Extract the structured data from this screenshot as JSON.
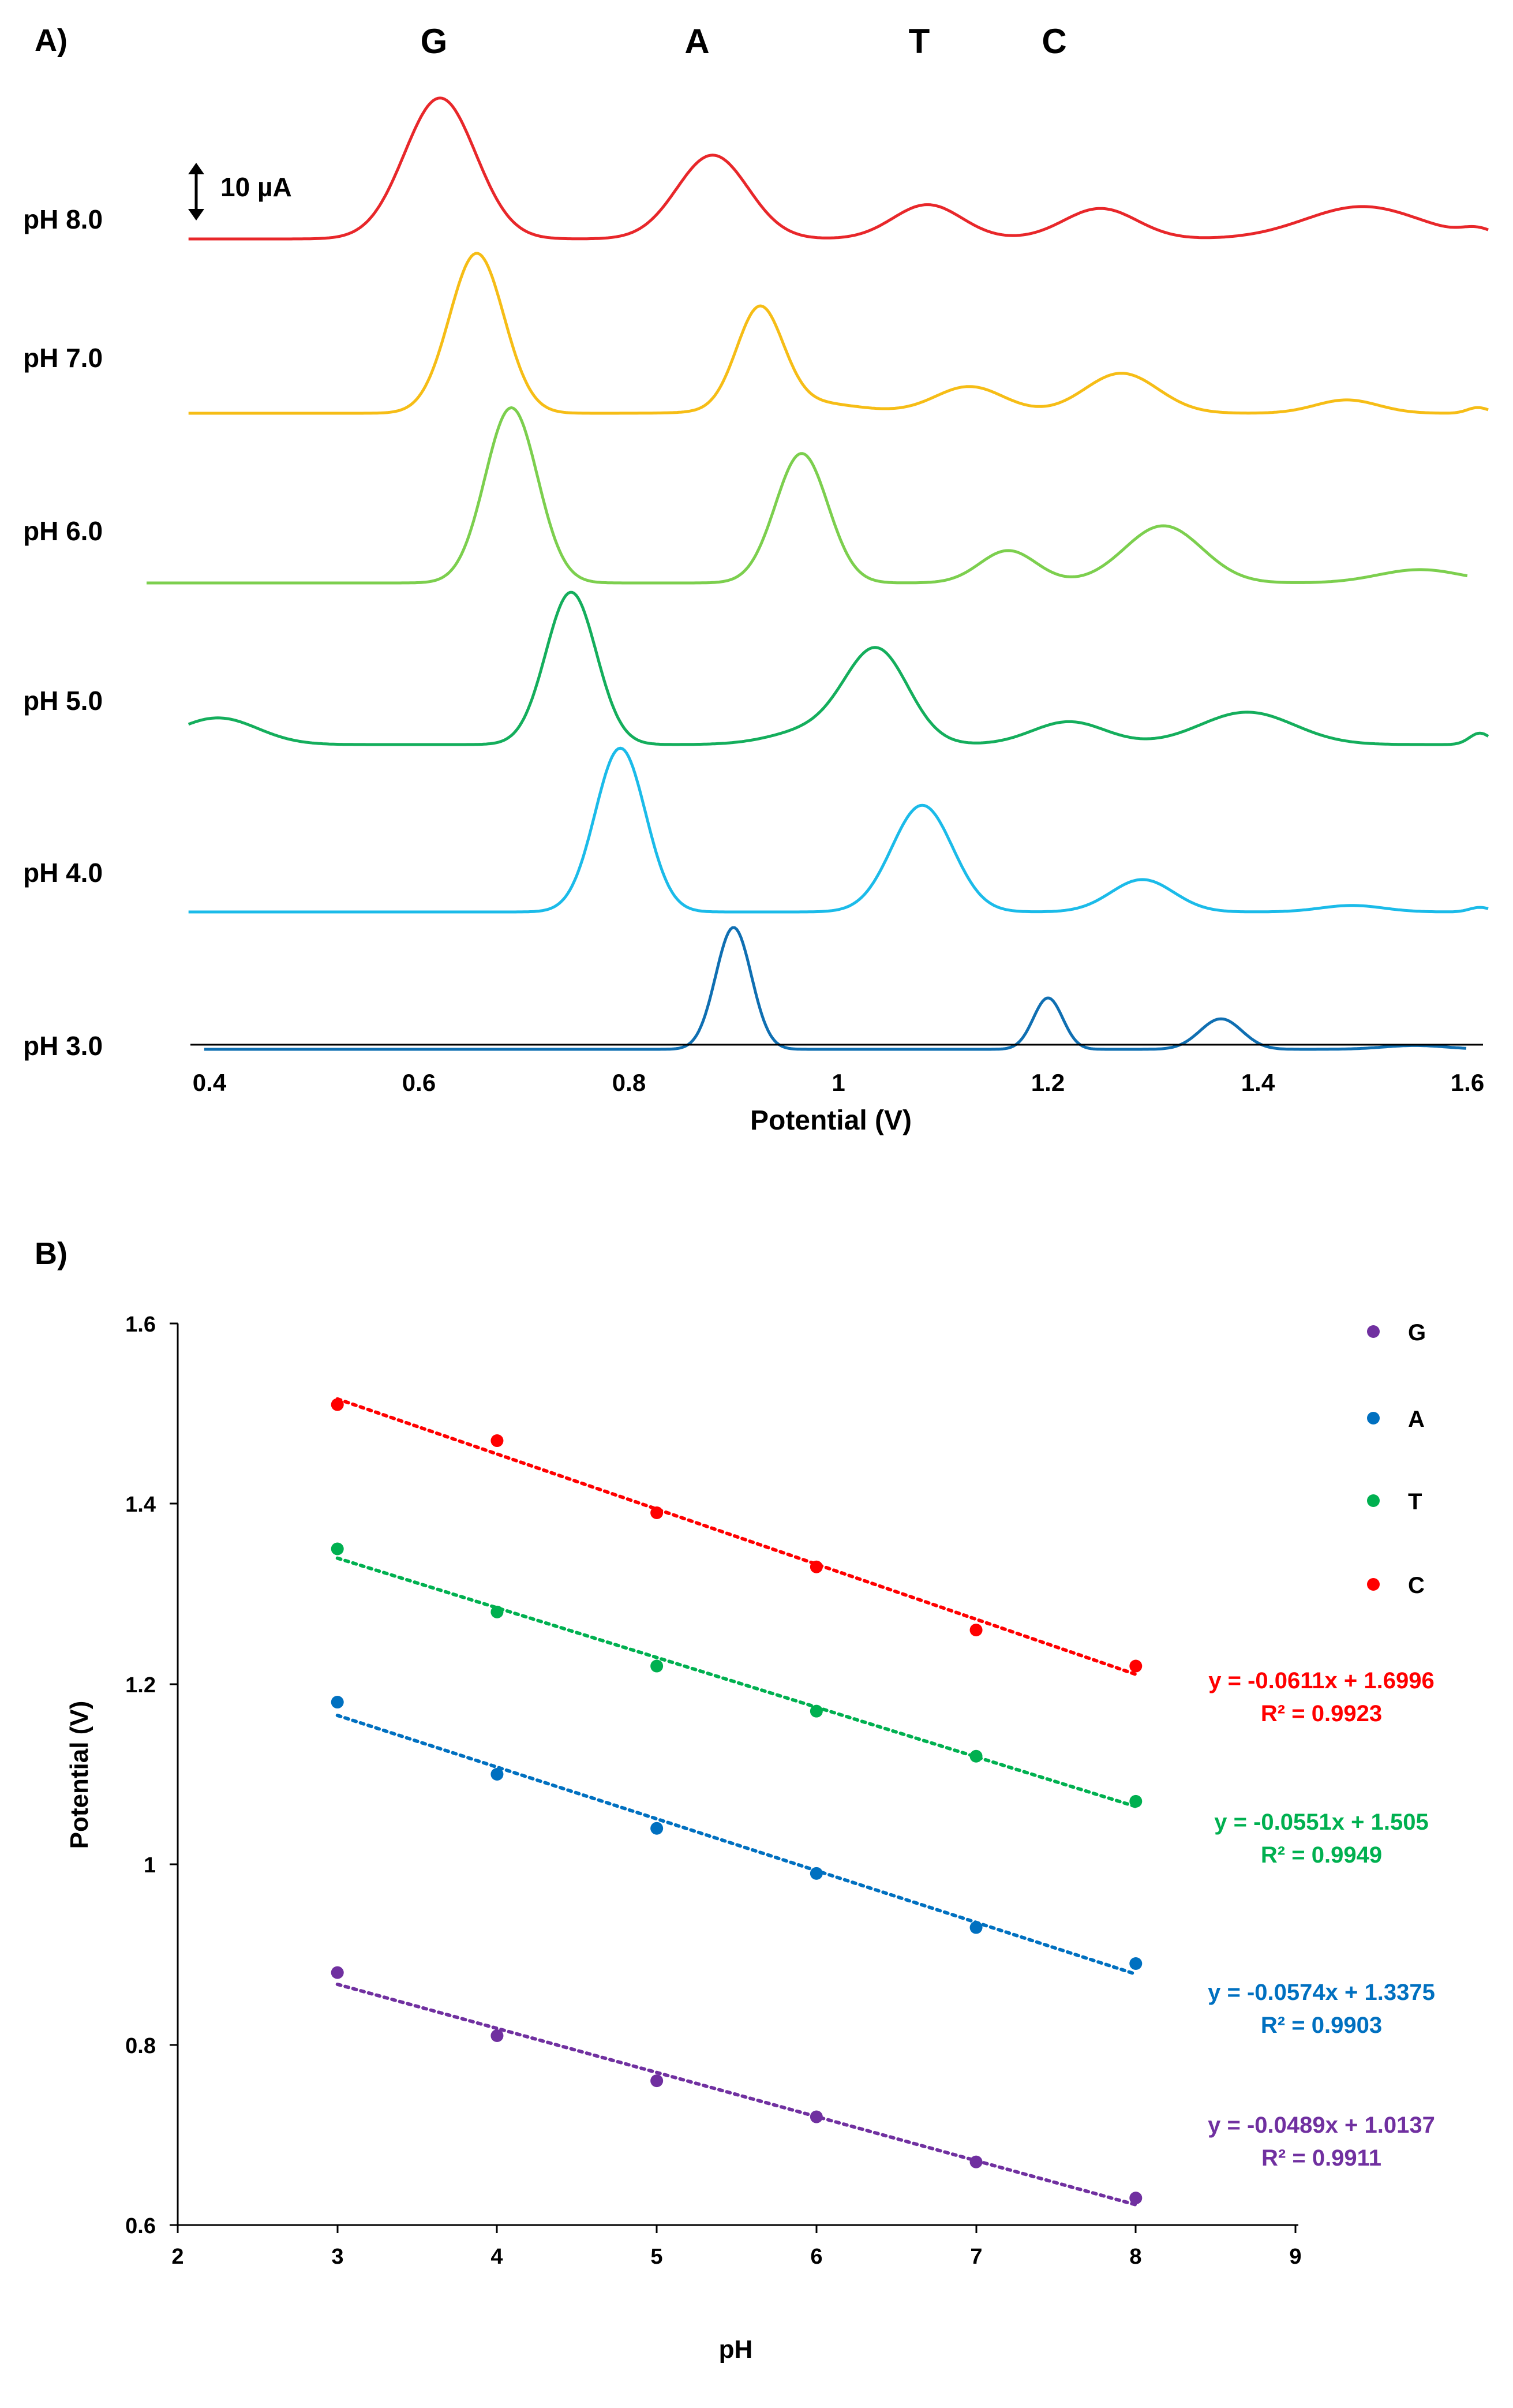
{
  "panel_a": {
    "label": "A)",
    "peak_labels": [
      "G",
      "A",
      "T",
      "C"
    ],
    "scale_bar": "10 µA",
    "xlabel": "Potential (V)",
    "x_ticks": [
      "0.4",
      "0.6",
      "0.8",
      "1",
      "1.2",
      "1.4",
      "1.6"
    ],
    "trace_labels": [
      "pH 8.0",
      "pH 7.0",
      "pH 6.0",
      "pH 5.0",
      "pH 4.0",
      "pH 3.0"
    ]
  },
  "panel_b": {
    "label": "B)",
    "xlabel": "pH",
    "ylabel": "Potential (V)",
    "x_ticks": [
      "2",
      "3",
      "4",
      "5",
      "6",
      "7",
      "8",
      "9"
    ],
    "y_ticks": [
      "0.6",
      "0.8",
      "1",
      "1.2",
      "1.4",
      "1.6"
    ],
    "legend": [
      "G",
      "A",
      "T",
      "C"
    ],
    "equations": [
      {
        "eq": "y = -0.0611x + 1.6996",
        "r2": "R² = 0.9923"
      },
      {
        "eq": "y = -0.0551x + 1.505",
        "r2": "R² = 0.9949"
      },
      {
        "eq": "y = -0.0574x + 1.3375",
        "r2": "R² = 0.9903"
      },
      {
        "eq": "y = -0.0489x + 1.0137",
        "r2": "R² = 0.9911"
      }
    ]
  },
  "chart_data": [
    {
      "type": "line",
      "title": "A)",
      "xlabel": "Potential (V)",
      "ylabel": "",
      "xlim": [
        0.38,
        1.62
      ],
      "scale_bar_uA": 10,
      "peak_labels": [
        "G",
        "A",
        "T",
        "C"
      ],
      "series": [
        {
          "name": "pH 8.0",
          "color": "#e8272a",
          "peaks": [
            {
              "x": 0.62,
              "h": 37,
              "w": 0.034
            },
            {
              "x": 0.88,
              "h": 22,
              "w": 0.034
            },
            {
              "x": 1.085,
              "h": 9,
              "w": 0.033
            },
            {
              "x": 1.25,
              "h": 8,
              "w": 0.035
            },
            {
              "x": 1.5,
              "h": 8.5,
              "w": 0.055
            },
            {
              "x": 1.61,
              "h": 2,
              "w": 0.015
            }
          ]
        },
        {
          "name": "pH 7.0",
          "color": "#f6bd16",
          "peaks": [
            {
              "x": 0.655,
              "h": 42,
              "w": 0.026
            },
            {
              "x": 0.925,
              "h": 26,
              "w": 0.022
            },
            {
              "x": 0.965,
              "h": 3,
              "w": 0.05
            },
            {
              "x": 1.125,
              "h": 7,
              "w": 0.033
            },
            {
              "x": 1.27,
              "h": 10.5,
              "w": 0.035
            },
            {
              "x": 1.485,
              "h": 3.5,
              "w": 0.03
            },
            {
              "x": 1.61,
              "h": 1.5,
              "w": 0.01
            }
          ]
        },
        {
          "name": "pH 6.0",
          "color": "#7ccf4e",
          "peaks": [
            {
              "x": 0.688,
              "h": 46,
              "w": 0.025
            },
            {
              "x": 0.965,
              "h": 34,
              "w": 0.025
            },
            {
              "x": 1.162,
              "h": 8.5,
              "w": 0.027
            },
            {
              "x": 1.31,
              "h": 15,
              "w": 0.037
            },
            {
              "x": 1.555,
              "h": 3.5,
              "w": 0.04
            }
          ]
        },
        {
          "name": "pH 5.0",
          "color": "#14ae5c",
          "peaks": [
            {
              "x": 0.408,
              "h": 7,
              "w": 0.038
            },
            {
              "x": 0.745,
              "h": 40,
              "w": 0.024
            },
            {
              "x": 1.037,
              "h": 24,
              "w": 0.03
            },
            {
              "x": 0.98,
              "h": 4,
              "w": 0.04
            },
            {
              "x": 1.22,
              "h": 6,
              "w": 0.035
            },
            {
              "x": 1.39,
              "h": 8.5,
              "w": 0.045
            },
            {
              "x": 1.612,
              "h": 3,
              "w": 0.01
            }
          ]
        },
        {
          "name": "pH 4.0",
          "color": "#1bbbe9",
          "peaks": [
            {
              "x": 0.792,
              "h": 43,
              "w": 0.024
            },
            {
              "x": 1.08,
              "h": 28,
              "w": 0.029
            },
            {
              "x": 1.29,
              "h": 8.5,
              "w": 0.03
            },
            {
              "x": 1.49,
              "h": 1.7,
              "w": 0.03
            },
            {
              "x": 1.612,
              "h": 1.2,
              "w": 0.01
            }
          ]
        },
        {
          "name": "pH 3.0",
          "color": "#0f6fb2",
          "peaks": [
            {
              "x": 0.9,
              "h": 32,
              "w": 0.017
            },
            {
              "x": 1.2,
              "h": 13.5,
              "w": 0.014
            },
            {
              "x": 1.365,
              "h": 8,
              "w": 0.02
            },
            {
              "x": 1.55,
              "h": 1,
              "w": 0.03
            }
          ]
        }
      ]
    },
    {
      "type": "scatter",
      "title": "B)",
      "xlabel": "pH",
      "ylabel": "Potential (V)",
      "xlim": [
        2,
        9
      ],
      "ylim": [
        0.6,
        1.6
      ],
      "x": [
        3,
        4,
        5,
        6,
        7,
        8
      ],
      "series": [
        {
          "name": "G",
          "color": "#7030a0",
          "values": [
            0.88,
            0.81,
            0.76,
            0.72,
            0.67,
            0.63
          ],
          "slope": -0.0489,
          "intercept": 1.0137,
          "r2": 0.9911
        },
        {
          "name": "A",
          "color": "#0070c0",
          "values": [
            1.18,
            1.1,
            1.04,
            0.99,
            0.93,
            0.89
          ],
          "slope": -0.0574,
          "intercept": 1.3375,
          "r2": 0.9903
        },
        {
          "name": "T",
          "color": "#00b050",
          "values": [
            1.35,
            1.28,
            1.22,
            1.17,
            1.12,
            1.07
          ],
          "slope": -0.0551,
          "intercept": 1.505,
          "r2": 0.9949
        },
        {
          "name": "C",
          "color": "#ff0000",
          "values": [
            1.51,
            1.47,
            1.39,
            1.33,
            1.26,
            1.22
          ],
          "slope": -0.0611,
          "intercept": 1.6996,
          "r2": 0.9923
        }
      ]
    }
  ]
}
